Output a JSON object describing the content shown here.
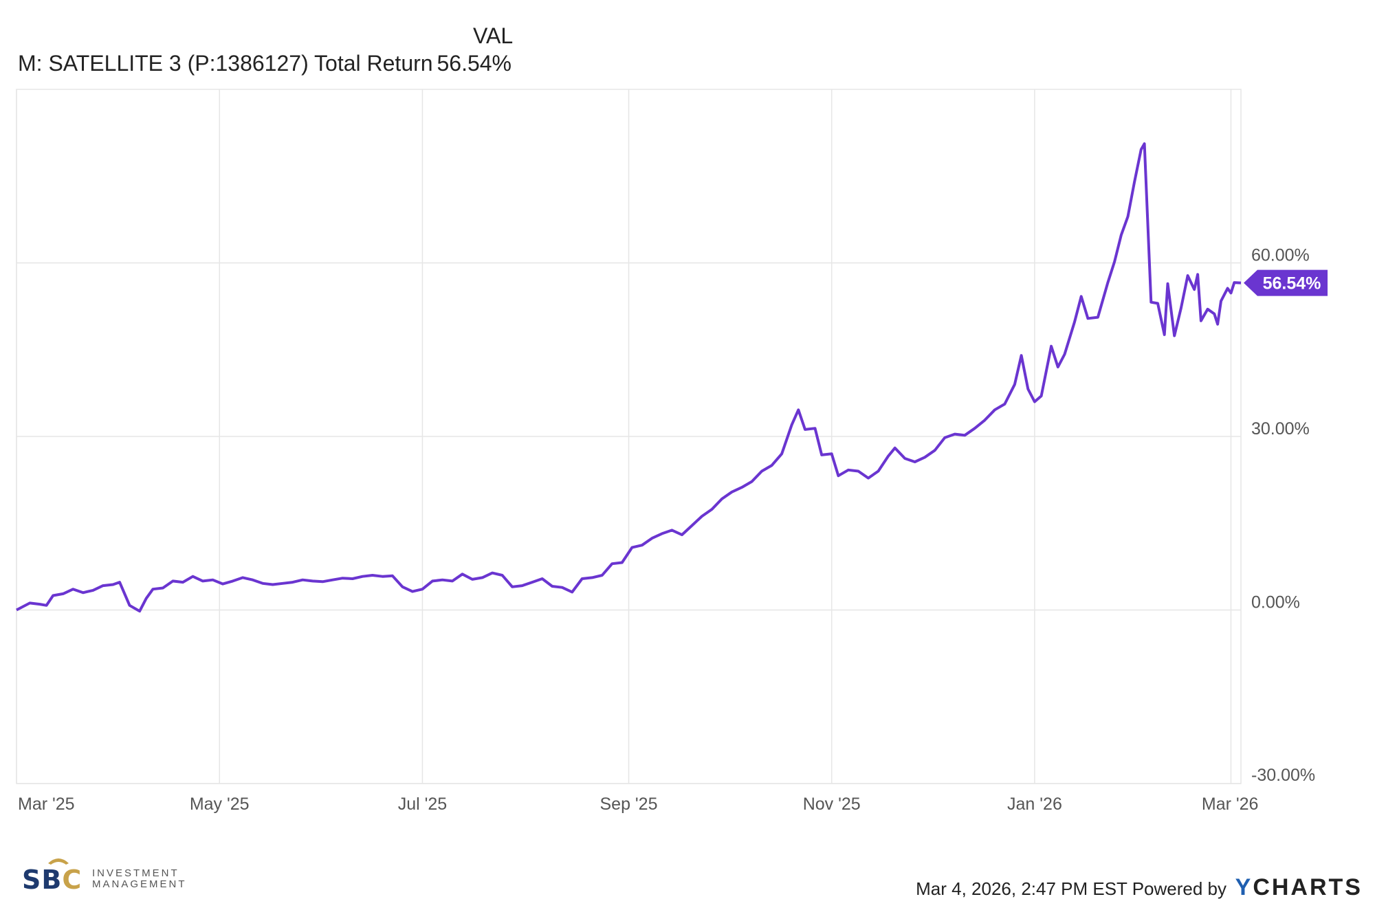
{
  "legend": {
    "column_header": "VAL",
    "series_label": "M: SATELLITE 3 (P:1386127) Total Return",
    "series_value": "56.54%"
  },
  "footer": {
    "timestamp": "Mar 4, 2026, 2:47 PM EST Powered by",
    "brand_y": "Y",
    "brand_rest": "CHARTS",
    "logo_letters_1": "SB",
    "logo_letters_2": "C",
    "logo_line1": "INVESTMENT",
    "logo_line2": "MANAGEMENT",
    "logo_crest": "bull-crest-icon"
  },
  "colors": {
    "series": "#6a35d0",
    "grid": "#e6e6e6",
    "axis_text": "#555555",
    "badge_text": "#ffffff"
  },
  "chart_data": {
    "type": "line",
    "title": "",
    "xlabel": "",
    "ylabel": "",
    "x_tick_labels": [
      "Mar '25",
      "May '25",
      "Jul '25",
      "Sep '25",
      "Nov '25",
      "Jan '26",
      "Mar '26"
    ],
    "x_tick_dates": [
      "2025-03-01",
      "2025-05-01",
      "2025-07-01",
      "2025-09-01",
      "2025-11-01",
      "2026-01-01",
      "2026-03-01"
    ],
    "y_tick_labels": [
      "60.00%",
      "30.00%",
      "0.00%",
      "-30.00%"
    ],
    "y_tick_values": [
      60,
      30,
      0,
      -30
    ],
    "ylim": [
      -30,
      90
    ],
    "xlim": [
      "2025-03-01",
      "2026-03-04"
    ],
    "grid": true,
    "last_value_badge": "56.54%",
    "series": [
      {
        "name": "M: SATELLITE 3 (P:1386127) Total Return",
        "points": [
          [
            "2025-03-01",
            0.0
          ],
          [
            "2025-03-05",
            1.2
          ],
          [
            "2025-03-08",
            1.0
          ],
          [
            "2025-03-10",
            0.8
          ],
          [
            "2025-03-12",
            2.5
          ],
          [
            "2025-03-15",
            2.8
          ],
          [
            "2025-03-18",
            3.6
          ],
          [
            "2025-03-21",
            3.0
          ],
          [
            "2025-03-24",
            3.4
          ],
          [
            "2025-03-27",
            4.2
          ],
          [
            "2025-03-30",
            4.4
          ],
          [
            "2025-04-01",
            4.8
          ],
          [
            "2025-04-04",
            0.8
          ],
          [
            "2025-04-07",
            -0.2
          ],
          [
            "2025-04-09",
            2.0
          ],
          [
            "2025-04-11",
            3.6
          ],
          [
            "2025-04-14",
            3.8
          ],
          [
            "2025-04-17",
            5.0
          ],
          [
            "2025-04-20",
            4.8
          ],
          [
            "2025-04-23",
            5.8
          ],
          [
            "2025-04-26",
            5.0
          ],
          [
            "2025-04-29",
            5.2
          ],
          [
            "2025-05-02",
            4.5
          ],
          [
            "2025-05-05",
            5.0
          ],
          [
            "2025-05-08",
            5.6
          ],
          [
            "2025-05-11",
            5.2
          ],
          [
            "2025-05-14",
            4.6
          ],
          [
            "2025-05-17",
            4.4
          ],
          [
            "2025-05-20",
            4.6
          ],
          [
            "2025-05-23",
            4.8
          ],
          [
            "2025-05-26",
            5.2
          ],
          [
            "2025-05-29",
            5.0
          ],
          [
            "2025-06-01",
            4.9
          ],
          [
            "2025-06-04",
            5.2
          ],
          [
            "2025-06-07",
            5.5
          ],
          [
            "2025-06-10",
            5.4
          ],
          [
            "2025-06-13",
            5.8
          ],
          [
            "2025-06-16",
            6.0
          ],
          [
            "2025-06-19",
            5.8
          ],
          [
            "2025-06-22",
            5.9
          ],
          [
            "2025-06-25",
            4.0
          ],
          [
            "2025-06-28",
            3.2
          ],
          [
            "2025-07-01",
            3.6
          ],
          [
            "2025-07-04",
            5.0
          ],
          [
            "2025-07-07",
            5.2
          ],
          [
            "2025-07-10",
            5.0
          ],
          [
            "2025-07-13",
            6.2
          ],
          [
            "2025-07-16",
            5.3
          ],
          [
            "2025-07-19",
            5.6
          ],
          [
            "2025-07-22",
            6.4
          ],
          [
            "2025-07-25",
            6.0
          ],
          [
            "2025-07-28",
            4.0
          ],
          [
            "2025-07-31",
            4.2
          ],
          [
            "2025-08-03",
            4.8
          ],
          [
            "2025-08-06",
            5.4
          ],
          [
            "2025-08-09",
            4.1
          ],
          [
            "2025-08-12",
            3.9
          ],
          [
            "2025-08-15",
            3.1
          ],
          [
            "2025-08-18",
            5.4
          ],
          [
            "2025-08-21",
            5.6
          ],
          [
            "2025-08-24",
            6.0
          ],
          [
            "2025-08-27",
            8.0
          ],
          [
            "2025-08-30",
            8.2
          ],
          [
            "2025-09-02",
            10.8
          ],
          [
            "2025-09-05",
            11.2
          ],
          [
            "2025-09-08",
            12.4
          ],
          [
            "2025-09-11",
            13.2
          ],
          [
            "2025-09-14",
            13.8
          ],
          [
            "2025-09-17",
            13.0
          ],
          [
            "2025-09-20",
            14.6
          ],
          [
            "2025-09-23",
            16.2
          ],
          [
            "2025-09-26",
            17.4
          ],
          [
            "2025-09-29",
            19.2
          ],
          [
            "2025-10-02",
            20.4
          ],
          [
            "2025-10-05",
            21.2
          ],
          [
            "2025-10-08",
            22.2
          ],
          [
            "2025-10-11",
            24.0
          ],
          [
            "2025-10-14",
            25.0
          ],
          [
            "2025-10-17",
            27.0
          ],
          [
            "2025-10-20",
            32.0
          ],
          [
            "2025-10-22",
            34.6
          ],
          [
            "2025-10-24",
            31.2
          ],
          [
            "2025-10-27",
            31.4
          ],
          [
            "2025-10-29",
            26.8
          ],
          [
            "2025-11-01",
            27.0
          ],
          [
            "2025-11-03",
            23.2
          ],
          [
            "2025-11-06",
            24.2
          ],
          [
            "2025-11-09",
            24.0
          ],
          [
            "2025-11-12",
            22.8
          ],
          [
            "2025-11-15",
            24.0
          ],
          [
            "2025-11-18",
            26.6
          ],
          [
            "2025-11-20",
            28.0
          ],
          [
            "2025-11-23",
            26.2
          ],
          [
            "2025-11-26",
            25.6
          ],
          [
            "2025-11-29",
            26.4
          ],
          [
            "2025-12-02",
            27.6
          ],
          [
            "2025-12-05",
            29.8
          ],
          [
            "2025-12-08",
            30.4
          ],
          [
            "2025-12-11",
            30.2
          ],
          [
            "2025-12-14",
            31.4
          ],
          [
            "2025-12-17",
            32.8
          ],
          [
            "2025-12-20",
            34.6
          ],
          [
            "2025-12-23",
            35.6
          ],
          [
            "2025-12-26",
            39.0
          ],
          [
            "2025-12-28",
            44.0
          ],
          [
            "2025-12-30",
            38.2
          ],
          [
            "2026-01-01",
            36.0
          ],
          [
            "2026-01-03",
            37.0
          ],
          [
            "2026-01-06",
            45.6
          ],
          [
            "2026-01-08",
            42.0
          ],
          [
            "2026-01-10",
            44.2
          ],
          [
            "2026-01-13",
            49.8
          ],
          [
            "2026-01-15",
            54.2
          ],
          [
            "2026-01-17",
            50.4
          ],
          [
            "2026-01-20",
            50.6
          ],
          [
            "2026-01-23",
            56.6
          ],
          [
            "2026-01-25",
            60.2
          ],
          [
            "2026-01-27",
            64.8
          ],
          [
            "2026-01-29",
            68.0
          ],
          [
            "2026-01-31",
            74.0
          ],
          [
            "2026-02-02",
            79.6
          ],
          [
            "2026-02-03",
            80.6
          ],
          [
            "2026-02-05",
            53.2
          ],
          [
            "2026-02-07",
            53.0
          ],
          [
            "2026-02-09",
            47.6
          ],
          [
            "2026-02-10",
            56.4
          ],
          [
            "2026-02-12",
            47.4
          ],
          [
            "2026-02-14",
            52.2
          ],
          [
            "2026-02-16",
            57.8
          ],
          [
            "2026-02-18",
            55.4
          ],
          [
            "2026-02-19",
            58.0
          ],
          [
            "2026-02-20",
            50.0
          ],
          [
            "2026-02-22",
            52.0
          ],
          [
            "2026-02-24",
            51.2
          ],
          [
            "2026-02-25",
            49.4
          ],
          [
            "2026-02-26",
            53.4
          ],
          [
            "2026-02-28",
            55.6
          ],
          [
            "2026-03-01",
            54.8
          ],
          [
            "2026-03-02",
            56.6
          ],
          [
            "2026-03-04",
            56.54
          ]
        ]
      }
    ]
  }
}
